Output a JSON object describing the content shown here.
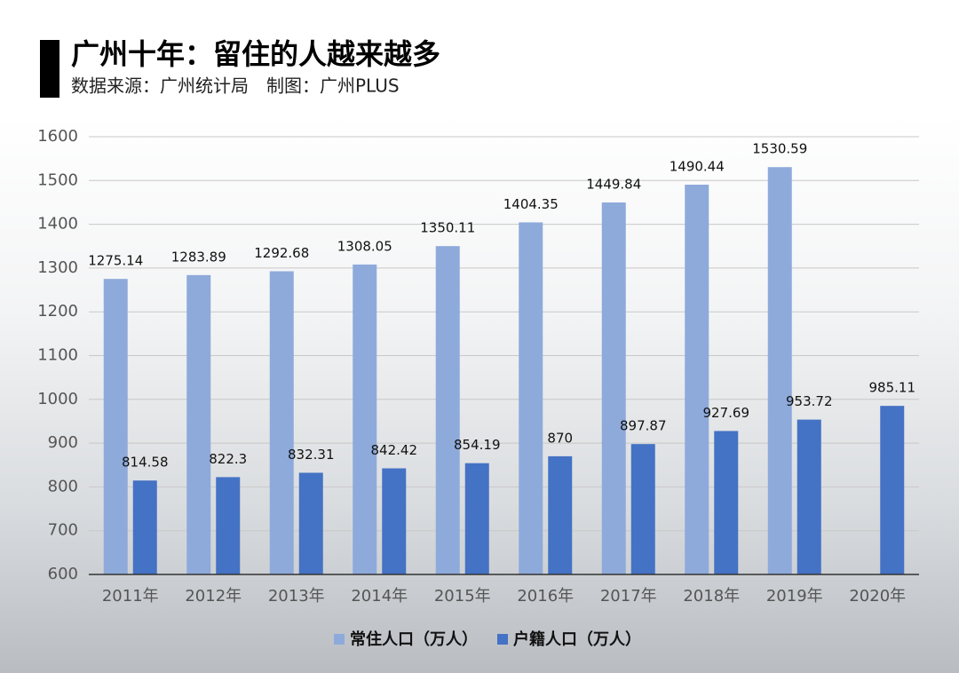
{
  "chart_data": {
    "type": "bar",
    "title": "广州十年：留住的人越来越多",
    "subtitle": "数据来源：广州统计局　制图：广州PLUS",
    "categories": [
      "2011年",
      "2012年",
      "2013年",
      "2014年",
      "2015年",
      "2016年",
      "2017年",
      "2018年",
      "2019年",
      "2020年"
    ],
    "series": [
      {
        "name": "常住人口（万人）",
        "color": "#8eaadb",
        "values": [
          1275.14,
          1283.89,
          1292.68,
          1308.05,
          1350.11,
          1404.35,
          1449.84,
          1490.44,
          1530.59,
          null
        ]
      },
      {
        "name": "户籍人口（万人）",
        "color": "#4472c4",
        "values": [
          814.58,
          822.3,
          832.31,
          842.42,
          854.19,
          870,
          897.87,
          927.69,
          953.72,
          985.11
        ]
      }
    ],
    "ylim": [
      600,
      1600
    ],
    "yticks": [
      600,
      700,
      800,
      900,
      1000,
      1100,
      1200,
      1300,
      1400,
      1500,
      1600
    ],
    "grid": true,
    "legend": "bottom"
  }
}
